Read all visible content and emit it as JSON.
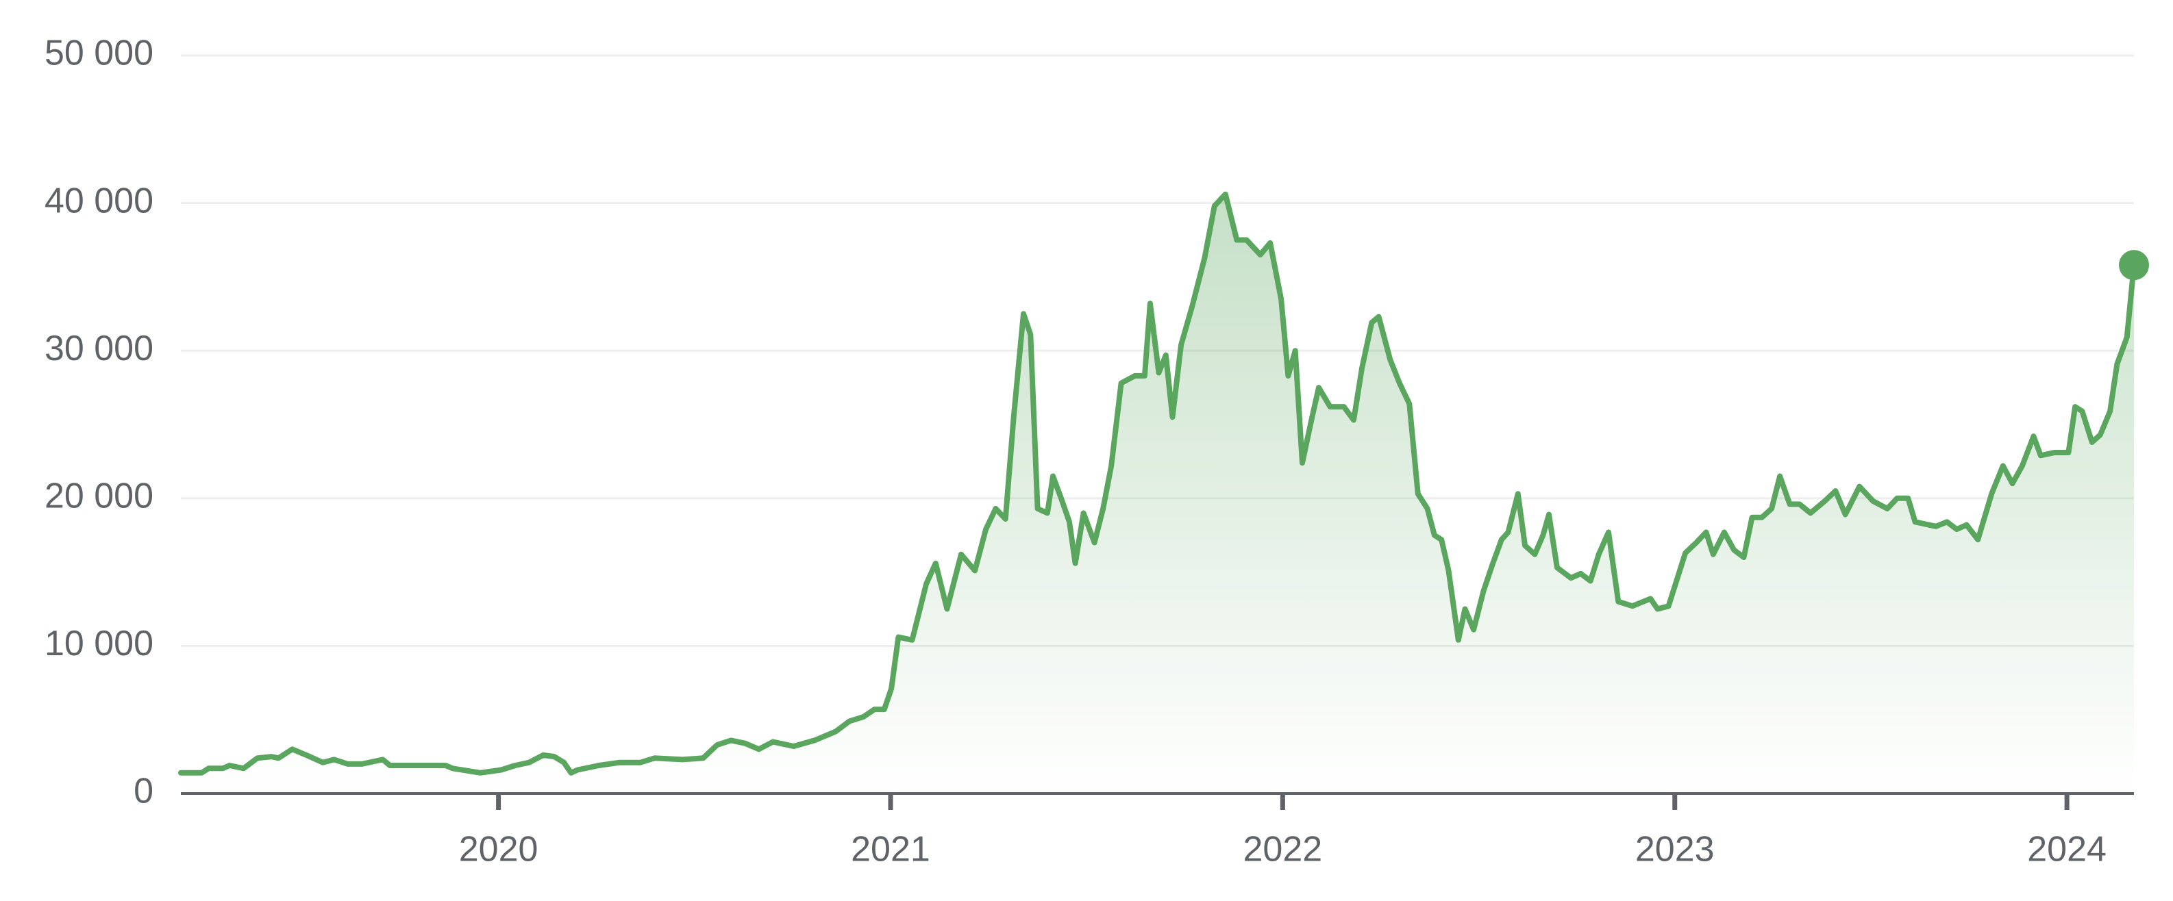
{
  "chart_data": {
    "type": "line",
    "color": "#5ba65f",
    "grid": true,
    "xlim": [
      2019.19,
      2024.171
    ],
    "xticks": [
      2020,
      2021,
      2022,
      2023,
      2024
    ],
    "ylim": [
      0,
      50000
    ],
    "yticks": [
      0,
      {
        "value": 10000,
        "label": "10 000"
      },
      {
        "value": 20000,
        "label": "20 000"
      },
      {
        "value": 30000,
        "label": "30 000"
      },
      {
        "value": 40000,
        "label": "40 000"
      },
      {
        "value": 50000,
        "label": "50 000"
      }
    ],
    "x": [
      2019.19,
      2019.243,
      2019.261,
      2019.297,
      2019.314,
      2019.35,
      2019.385,
      2019.421,
      2019.439,
      2019.474,
      2019.51,
      2019.552,
      2019.581,
      2019.616,
      2019.652,
      2019.705,
      2019.723,
      2019.794,
      2019.865,
      2019.883,
      2019.954,
      2020.007,
      2020.043,
      2020.078,
      2020.114,
      2020.142,
      2020.167,
      2020.185,
      2020.202,
      2020.256,
      2020.309,
      2020.362,
      2020.398,
      2020.469,
      2020.522,
      2020.558,
      2020.593,
      2020.629,
      2020.664,
      2020.7,
      2020.753,
      2020.806,
      2020.86,
      2020.895,
      2020.931,
      2020.959,
      2020.984,
      2021.002,
      2021.02,
      2021.055,
      2021.091,
      2021.115,
      2021.144,
      2021.18,
      2021.215,
      2021.243,
      2021.268,
      2021.293,
      2021.314,
      2021.339,
      2021.357,
      2021.375,
      2021.4,
      2021.414,
      2021.435,
      2021.456,
      2021.471,
      2021.492,
      2021.52,
      2021.542,
      2021.563,
      2021.588,
      2021.623,
      2021.648,
      2021.662,
      2021.684,
      2021.702,
      2021.719,
      2021.741,
      2021.769,
      2021.801,
      2021.826,
      2021.854,
      2021.883,
      2021.908,
      2021.943,
      2021.968,
      2021.996,
      2022.014,
      2022.032,
      2022.05,
      2022.075,
      2022.092,
      2022.121,
      2022.156,
      2022.181,
      2022.202,
      2022.227,
      2022.245,
      2022.274,
      2022.298,
      2022.323,
      2022.345,
      2022.369,
      2022.387,
      2022.405,
      2022.423,
      2022.448,
      2022.465,
      2022.487,
      2022.512,
      2022.536,
      2022.558,
      2022.575,
      2022.6,
      2022.618,
      2022.643,
      2022.664,
      2022.679,
      2022.7,
      2022.735,
      2022.76,
      2022.785,
      2022.806,
      2022.831,
      2022.856,
      2022.892,
      2022.938,
      2022.956,
      2022.984,
      2023.027,
      2023.055,
      2023.08,
      2023.098,
      2023.126,
      2023.151,
      2023.176,
      2023.197,
      2023.222,
      2023.247,
      2023.268,
      2023.293,
      2023.318,
      2023.346,
      2023.382,
      2023.41,
      2023.435,
      2023.471,
      2023.506,
      2023.542,
      2023.567,
      2023.595,
      2023.613,
      2023.666,
      2023.694,
      2023.719,
      2023.744,
      2023.773,
      2023.808,
      2023.837,
      2023.861,
      2023.886,
      2023.915,
      2023.933,
      2023.968,
      2024.004,
      2024.021,
      2024.039,
      2024.064,
      2024.085,
      2024.11,
      2024.128,
      2024.153,
      2024.171
    ],
    "values": [
      1400,
      1400,
      1700,
      1700,
      1900,
      1700,
      2400,
      2500,
      2400,
      3000,
      2600,
      2100,
      2300,
      2000,
      2000,
      2300,
      1900,
      1900,
      1900,
      1700,
      1400,
      1600,
      1900,
      2100,
      2600,
      2500,
      2100,
      1400,
      1600,
      1900,
      2100,
      2100,
      2400,
      2300,
      2400,
      3300,
      3600,
      3400,
      3000,
      3500,
      3200,
      3600,
      4200,
      4900,
      5200,
      5700,
      5700,
      7100,
      10600,
      10400,
      14200,
      15600,
      12500,
      16200,
      15100,
      17900,
      19300,
      18600,
      25500,
      32500,
      31100,
      19300,
      19000,
      21500,
      20000,
      18400,
      15600,
      19000,
      17000,
      19300,
      22200,
      27800,
      28300,
      28300,
      33200,
      28500,
      29700,
      25500,
      30400,
      33000,
      36300,
      39800,
      40600,
      37500,
      37500,
      36500,
      37300,
      33500,
      28300,
      30000,
      22400,
      25500,
      27500,
      26200,
      26200,
      25300,
      28800,
      31900,
      32300,
      29400,
      27800,
      26400,
      20300,
      19300,
      17500,
      17200,
      15100,
      10400,
      12500,
      11100,
      13700,
      15600,
      17200,
      17700,
      20300,
      16800,
      16200,
      17500,
      18900,
      15300,
      14600,
      14900,
      14400,
      16200,
      17700,
      13000,
      12700,
      13200,
      12500,
      12700,
      16300,
      17000,
      17700,
      16200,
      17700,
      16500,
      16000,
      18700,
      18700,
      19300,
      21500,
      19600,
      19600,
      19000,
      19800,
      20500,
      18900,
      20800,
      19800,
      19300,
      20000,
      20000,
      18400,
      18100,
      18400,
      17900,
      18200,
      17200,
      20300,
      22200,
      21000,
      22200,
      24200,
      22900,
      23100,
      23100,
      26200,
      25900,
      23800,
      24300,
      25900,
      29100,
      30900,
      35800
    ]
  }
}
